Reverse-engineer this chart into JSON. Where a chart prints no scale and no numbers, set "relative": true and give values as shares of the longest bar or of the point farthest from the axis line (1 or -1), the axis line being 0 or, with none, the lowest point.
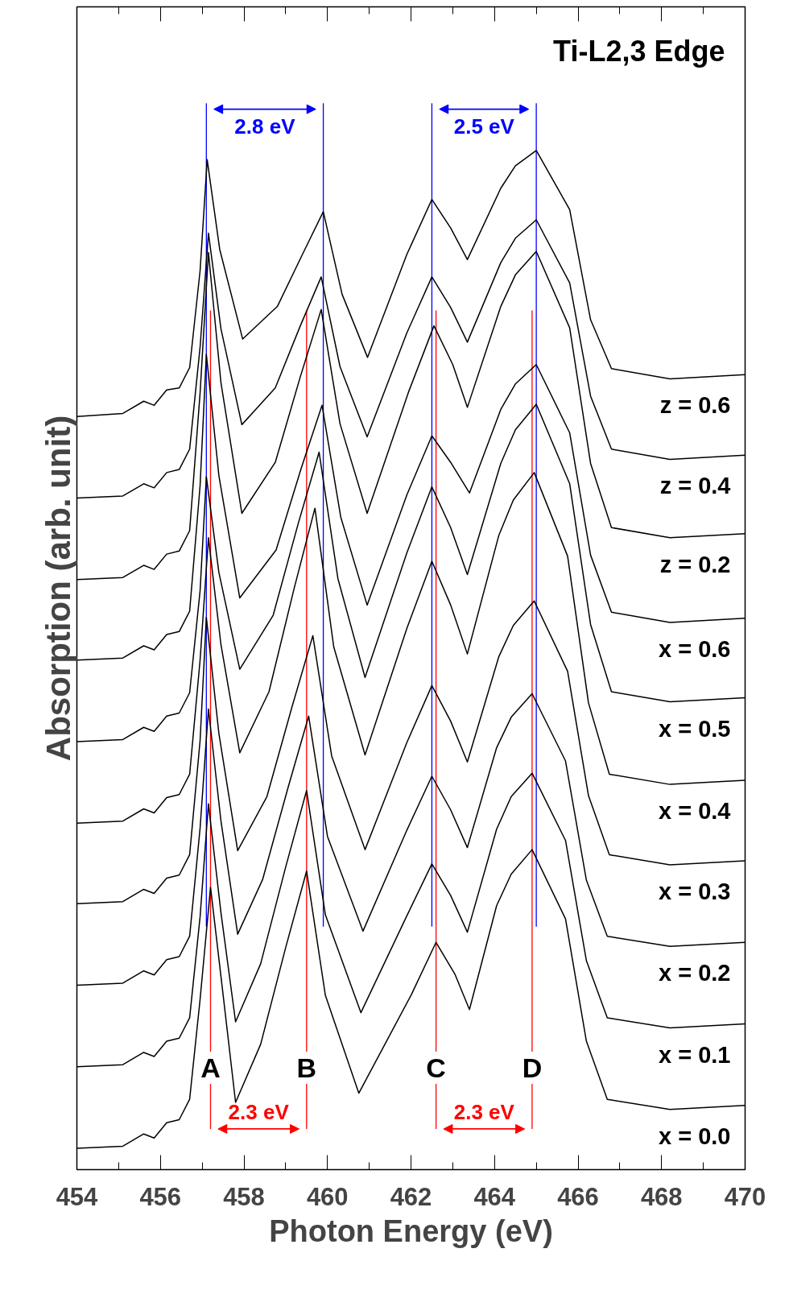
{
  "chart_data": {
    "type": "line",
    "title": "Ti-L2,3 Edge",
    "xlabel": "Photon Energy (eV)",
    "ylabel": "Absorption (arb. unit)",
    "relative": true,
    "line_style": "solid",
    "xlim": [
      454,
      470
    ],
    "xticks": [
      454,
      {
        "value": 455,
        "label": null
      },
      456,
      {
        "value": 457,
        "label": null
      },
      458,
      {
        "value": 459,
        "label": null
      },
      460,
      {
        "value": 461,
        "label": null
      },
      462,
      {
        "value": 463,
        "label": null
      },
      464,
      {
        "value": 465,
        "label": null
      },
      466,
      {
        "value": 467,
        "label": null
      },
      468,
      {
        "value": 469,
        "label": null
      },
      470
    ],
    "series": [
      {
        "name": "z = 0.6",
        "color": "#000000",
        "x": [
          454,
          455.1,
          455.6,
          455.85,
          456.15,
          456.45,
          456.7,
          456.95,
          457.12,
          457.42,
          457.97,
          458.8,
          459.4,
          459.9,
          460.35,
          460.96,
          461.9,
          462.5,
          462.95,
          463.35,
          464.15,
          464.5,
          465.0,
          465.8,
          466.3,
          466.8,
          468.2,
          470
        ],
        "values": [
          0.739,
          0.742,
          0.754,
          0.75,
          0.765,
          0.767,
          0.787,
          0.882,
          0.991,
          0.903,
          0.815,
          0.847,
          0.898,
          0.94,
          0.859,
          0.797,
          0.898,
          0.952,
          0.924,
          0.893,
          0.963,
          0.985,
          1.0,
          0.942,
          0.834,
          0.786,
          0.776,
          0.78
        ]
      },
      {
        "name": "z = 0.4",
        "color": "#000000",
        "x": [
          454,
          455.1,
          455.6,
          455.85,
          456.15,
          456.45,
          456.7,
          456.95,
          457.15,
          457.45,
          457.95,
          458.75,
          459.35,
          459.85,
          460.3,
          460.95,
          461.9,
          462.5,
          462.95,
          463.35,
          464.15,
          464.5,
          465.0,
          465.8,
          466.3,
          466.8,
          468.2,
          470
        ],
        "values": [
          0.659,
          0.661,
          0.673,
          0.669,
          0.684,
          0.687,
          0.707,
          0.807,
          0.919,
          0.825,
          0.731,
          0.767,
          0.828,
          0.876,
          0.788,
          0.719,
          0.821,
          0.876,
          0.846,
          0.812,
          0.89,
          0.914,
          0.932,
          0.87,
          0.759,
          0.707,
          0.697,
          0.701
        ]
      },
      {
        "name": "z = 0.2",
        "color": "#000000",
        "x": [
          454,
          455.1,
          455.6,
          455.85,
          456.15,
          456.45,
          456.7,
          456.95,
          457.15,
          457.45,
          457.95,
          458.75,
          459.35,
          459.85,
          460.3,
          460.95,
          461.95,
          462.55,
          463.0,
          463.35,
          464.15,
          464.5,
          465.0,
          465.8,
          466.3,
          466.8,
          468.2,
          470
        ],
        "values": [
          0.579,
          0.581,
          0.593,
          0.589,
          0.604,
          0.607,
          0.627,
          0.762,
          0.9,
          0.772,
          0.644,
          0.694,
          0.778,
          0.844,
          0.732,
          0.644,
          0.764,
          0.828,
          0.79,
          0.748,
          0.847,
          0.878,
          0.901,
          0.826,
          0.693,
          0.63,
          0.62,
          0.624
        ]
      },
      {
        "name": "x = 0.6",
        "color": "#000000",
        "x": [
          454,
          455.1,
          455.6,
          455.85,
          456.15,
          456.45,
          456.7,
          456.95,
          457.1,
          457.4,
          457.9,
          458.77,
          459.37,
          459.87,
          460.32,
          460.95,
          461.9,
          462.5,
          462.95,
          463.4,
          464.15,
          464.5,
          465.0,
          465.8,
          466.3,
          466.8,
          468.2,
          470
        ],
        "values": [
          0.5,
          0.502,
          0.514,
          0.51,
          0.525,
          0.528,
          0.548,
          0.671,
          0.8,
          0.681,
          0.561,
          0.608,
          0.688,
          0.75,
          0.64,
          0.554,
          0.662,
          0.72,
          0.694,
          0.664,
          0.746,
          0.771,
          0.79,
          0.723,
          0.603,
          0.547,
          0.537,
          0.541
        ]
      },
      {
        "name": "x = 0.5",
        "color": "#000000",
        "x": [
          454,
          455.1,
          455.6,
          455.85,
          456.15,
          456.45,
          456.7,
          456.95,
          457.1,
          457.4,
          457.9,
          458.7,
          459.3,
          459.8,
          460.25,
          460.9,
          461.9,
          462.5,
          462.95,
          463.35,
          464.15,
          464.5,
          465.0,
          465.8,
          466.3,
          466.8,
          468.2,
          470
        ],
        "values": [
          0.42,
          0.422,
          0.434,
          0.43,
          0.445,
          0.448,
          0.468,
          0.568,
          0.68,
          0.586,
          0.491,
          0.544,
          0.634,
          0.704,
          0.58,
          0.483,
          0.605,
          0.67,
          0.63,
          0.584,
          0.693,
          0.726,
          0.751,
          0.673,
          0.535,
          0.469,
          0.459,
          0.463
        ]
      },
      {
        "name": "x = 0.4",
        "color": "#000000",
        "x": [
          454,
          455.1,
          455.6,
          455.85,
          456.15,
          456.45,
          456.7,
          456.95,
          457.15,
          457.45,
          457.9,
          458.6,
          459.2,
          459.7,
          460.15,
          460.9,
          461.9,
          462.5,
          462.95,
          463.35,
          464.1,
          464.45,
          464.95,
          465.75,
          466.25,
          466.75,
          468.2,
          470
        ],
        "values": [
          0.34,
          0.342,
          0.354,
          0.35,
          0.365,
          0.368,
          0.388,
          0.5,
          0.62,
          0.515,
          0.409,
          0.469,
          0.57,
          0.649,
          0.513,
          0.407,
          0.531,
          0.597,
          0.554,
          0.506,
          0.622,
          0.657,
          0.684,
          0.602,
          0.458,
          0.388,
          0.378,
          0.382
        ]
      },
      {
        "name": "x = 0.3",
        "color": "#000000",
        "x": [
          454,
          455.1,
          455.6,
          455.85,
          456.15,
          456.45,
          456.7,
          456.95,
          457.1,
          457.4,
          457.85,
          458.55,
          459.15,
          459.65,
          460.1,
          460.9,
          461.9,
          462.5,
          462.95,
          463.35,
          464.1,
          464.45,
          464.95,
          465.75,
          466.25,
          466.75,
          468.2,
          470
        ],
        "values": [
          0.261,
          0.263,
          0.275,
          0.271,
          0.286,
          0.289,
          0.309,
          0.421,
          0.542,
          0.428,
          0.313,
          0.366,
          0.454,
          0.524,
          0.406,
          0.314,
          0.419,
          0.475,
          0.44,
          0.4,
          0.503,
          0.534,
          0.558,
          0.489,
          0.367,
          0.309,
          0.299,
          0.303
        ]
      },
      {
        "name": "x = 0.2",
        "color": "#000000",
        "x": [
          454,
          455.1,
          455.6,
          455.85,
          456.15,
          456.45,
          456.7,
          456.95,
          457.15,
          457.45,
          457.85,
          458.45,
          459.05,
          459.55,
          460.0,
          460.85,
          461.9,
          462.5,
          462.95,
          463.35,
          464.05,
          464.4,
          464.9,
          465.7,
          466.2,
          466.7,
          468.2,
          470
        ],
        "values": [
          0.181,
          0.183,
          0.195,
          0.191,
          0.206,
          0.209,
          0.229,
          0.335,
          0.452,
          0.342,
          0.231,
          0.285,
          0.374,
          0.445,
          0.327,
          0.234,
          0.333,
          0.386,
          0.353,
          0.316,
          0.414,
          0.444,
          0.467,
          0.401,
          0.284,
          0.229,
          0.219,
          0.223
        ]
      },
      {
        "name": "x = 0.1",
        "color": "#000000",
        "x": [
          454,
          455.1,
          455.6,
          455.85,
          456.15,
          456.45,
          456.7,
          456.95,
          457.15,
          457.45,
          457.8,
          458.4,
          459.0,
          459.5,
          459.95,
          460.8,
          461.9,
          462.5,
          462.95,
          463.35,
          464.05,
          464.4,
          464.9,
          465.7,
          466.2,
          466.7,
          468.2,
          470
        ],
        "values": [
          0.101,
          0.103,
          0.115,
          0.111,
          0.126,
          0.129,
          0.149,
          0.248,
          0.359,
          0.252,
          0.145,
          0.202,
          0.297,
          0.372,
          0.25,
          0.154,
          0.249,
          0.3,
          0.269,
          0.233,
          0.334,
          0.366,
          0.389,
          0.323,
          0.205,
          0.149,
          0.139,
          0.143
        ]
      },
      {
        "name": "x = 0.0",
        "color": "#000000",
        "x": [
          454,
          455.1,
          455.6,
          455.85,
          456.15,
          456.45,
          456.7,
          456.95,
          457.2,
          457.5,
          457.8,
          458.4,
          459.0,
          459.5,
          459.95,
          460.75,
          462.0,
          462.6,
          463.05,
          463.4,
          464.05,
          464.4,
          464.9,
          465.7,
          466.2,
          466.7,
          468.2,
          470
        ],
        "values": [
          0.021,
          0.023,
          0.035,
          0.031,
          0.046,
          0.049,
          0.069,
          0.167,
          0.277,
          0.172,
          0.066,
          0.123,
          0.218,
          0.293,
          0.171,
          0.075,
          0.171,
          0.223,
          0.192,
          0.157,
          0.259,
          0.29,
          0.314,
          0.246,
          0.126,
          0.069,
          0.059,
          0.063
        ]
      }
    ],
    "ref_lines": [
      {
        "axis": "x",
        "value": 457.1,
        "color": "#0000ff"
      },
      {
        "axis": "x",
        "value": 459.9,
        "color": "#0000ff",
        "label": "2.8 eV"
      },
      {
        "axis": "x",
        "value": 462.5,
        "color": "#0000ff"
      },
      {
        "axis": "x",
        "value": 465.0,
        "color": "#0000ff",
        "label": "2.5 eV"
      },
      {
        "axis": "x",
        "value": 457.2,
        "color": "#ff0000"
      },
      {
        "axis": "x",
        "value": 459.5,
        "color": "#ff0000",
        "label": "2.3 eV"
      },
      {
        "axis": "x",
        "value": 462.6,
        "color": "#ff0000"
      },
      {
        "axis": "x",
        "value": 464.9,
        "color": "#ff0000",
        "label": "2.3 eV"
      }
    ],
    "annotations": [
      {
        "text": "A",
        "x": 457.2,
        "y": 0.1
      },
      {
        "text": "B",
        "x": 459.5,
        "y": 0.1
      },
      {
        "text": "C",
        "x": 462.6,
        "y": 0.1
      },
      {
        "text": "D",
        "x": 464.9,
        "y": 0.1
      }
    ]
  }
}
